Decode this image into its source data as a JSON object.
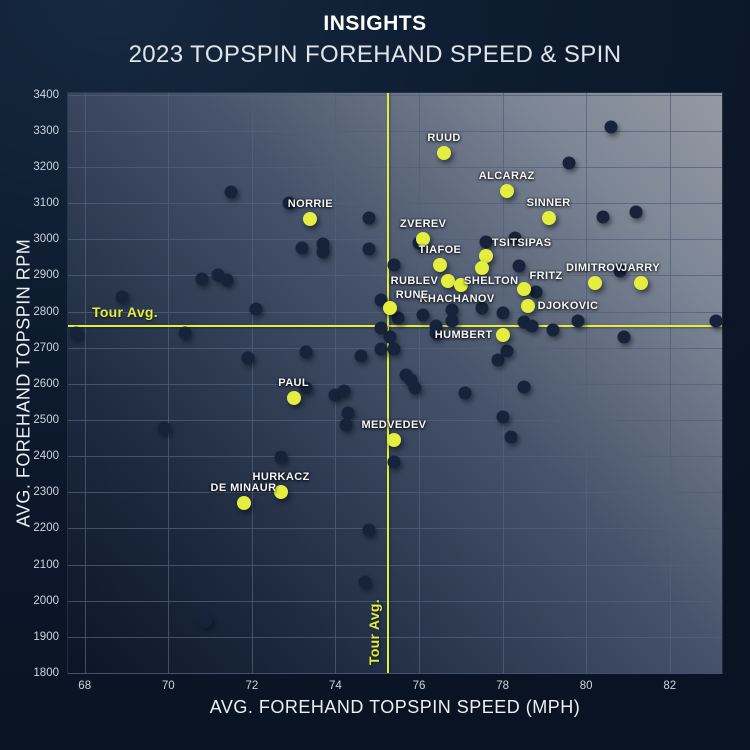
{
  "header": {
    "title": "INSIGHTS",
    "subtitle": "2023 TOPSPIN FOREHAND SPEED & SPIN"
  },
  "colors": {
    "accent_yellow": "#e3ee3f",
    "dark_point": "#16233a",
    "gridline": "#51607a",
    "label_text": "#f5f7f9",
    "tick_text": "#ccd4dd"
  },
  "chart_data": {
    "type": "scatter",
    "title": "INSIGHTS",
    "subtitle": "2023 TOPSPIN FOREHAND SPEED & SPIN",
    "xlabel": "AVG. FOREHAND TOPSPIN SPEED (MPH)",
    "ylabel": "AVG. FOREHAND TOPSPIN RPM",
    "xlim": [
      67.6,
      83.25
    ],
    "ylim": [
      1800,
      3405
    ],
    "xticks": [
      68,
      70,
      72,
      74,
      76,
      78,
      80,
      82
    ],
    "yticks": [
      1800,
      1900,
      2000,
      2100,
      2200,
      2300,
      2400,
      2500,
      2600,
      2700,
      2800,
      2900,
      3000,
      3100,
      3200,
      3300,
      3400
    ],
    "grid": true,
    "tour_avg": {
      "label": "Tour Avg.",
      "speed": 75.26,
      "rpm": 2760
    },
    "players": [
      {
        "name": "RUUD",
        "speed": 76.6,
        "rpm": 3240,
        "label_pos": "top"
      },
      {
        "name": "ALCARAZ",
        "speed": 78.1,
        "rpm": 3135,
        "label_pos": "top"
      },
      {
        "name": "SINNER",
        "speed": 79.1,
        "rpm": 3060,
        "label_pos": "top"
      },
      {
        "name": "NORRIE",
        "speed": 73.4,
        "rpm": 3055,
        "label_pos": "top"
      },
      {
        "name": "ZVEREV",
        "speed": 76.1,
        "rpm": 3000,
        "label_pos": "top"
      },
      {
        "name": "TSITSIPAS",
        "speed": 77.6,
        "rpm": 2955,
        "label_pos": "top-right"
      },
      {
        "name": "TIAFOE",
        "speed": 76.5,
        "rpm": 2930,
        "label_pos": "top"
      },
      {
        "name": "SHELTON",
        "speed": 77.5,
        "rpm": 2920,
        "label_pos": "bottom-right"
      },
      {
        "name": "RUBLEV",
        "speed": 76.7,
        "rpm": 2885,
        "label_pos": "left"
      },
      {
        "name": "KHACHANOV",
        "speed": 77.0,
        "rpm": 2875,
        "label_pos": "bottom"
      },
      {
        "name": "FRITZ",
        "speed": 78.5,
        "rpm": 2862,
        "label_pos": "top-right"
      },
      {
        "name": "DIMITROV",
        "speed": 80.2,
        "rpm": 2880,
        "label_pos": "top"
      },
      {
        "name": "JARRY",
        "speed": 81.3,
        "rpm": 2880,
        "label_pos": "top"
      },
      {
        "name": "RUNE",
        "speed": 75.3,
        "rpm": 2810,
        "label_pos": "top-right"
      },
      {
        "name": "DJOKOVIC",
        "speed": 78.6,
        "rpm": 2815,
        "label_pos": "right"
      },
      {
        "name": "HUMBERT",
        "speed": 78.0,
        "rpm": 2735,
        "label_pos": "left"
      },
      {
        "name": "PAUL",
        "speed": 73.0,
        "rpm": 2560,
        "label_pos": "top"
      },
      {
        "name": "MEDVEDEV",
        "speed": 75.4,
        "rpm": 2445,
        "label_pos": "top"
      },
      {
        "name": "HURKACZ",
        "speed": 72.7,
        "rpm": 2300,
        "label_pos": "top"
      },
      {
        "name": "DE MINAUR",
        "speed": 71.8,
        "rpm": 2270,
        "label_pos": "top"
      }
    ],
    "unlabeled_points": [
      [
        71.5,
        3130
      ],
      [
        72.9,
        3100
      ],
      [
        80.6,
        3310
      ],
      [
        79.6,
        3210
      ],
      [
        80.4,
        3062
      ],
      [
        81.2,
        3075
      ],
      [
        74.8,
        3060
      ],
      [
        73.2,
        2975
      ],
      [
        73.7,
        2987
      ],
      [
        73.7,
        2965
      ],
      [
        74.8,
        2973
      ],
      [
        76.0,
        2990
      ],
      [
        77.6,
        2992
      ],
      [
        78.3,
        3005
      ],
      [
        75.4,
        2930
      ],
      [
        78.4,
        2926
      ],
      [
        70.8,
        2890
      ],
      [
        71.2,
        2900
      ],
      [
        71.4,
        2888
      ],
      [
        68.9,
        2840
      ],
      [
        80.8,
        2912
      ],
      [
        78.8,
        2853
      ],
      [
        78.0,
        2796
      ],
      [
        77.5,
        2810
      ],
      [
        76.8,
        2804
      ],
      [
        76.1,
        2792
      ],
      [
        75.1,
        2833
      ],
      [
        72.1,
        2808
      ],
      [
        67.8,
        2740
      ],
      [
        70.4,
        2742
      ],
      [
        75.1,
        2754
      ],
      [
        75.3,
        2731
      ],
      [
        75.5,
        2783
      ],
      [
        76.4,
        2760
      ],
      [
        76.8,
        2773
      ],
      [
        78.5,
        2772
      ],
      [
        78.7,
        2761
      ],
      [
        79.2,
        2748
      ],
      [
        79.8,
        2775
      ],
      [
        83.1,
        2775
      ],
      [
        80.9,
        2729
      ],
      [
        76.4,
        2741
      ],
      [
        77.9,
        2666
      ],
      [
        78.1,
        2692
      ],
      [
        75.1,
        2697
      ],
      [
        75.4,
        2696
      ],
      [
        74.6,
        2678
      ],
      [
        71.9,
        2673
      ],
      [
        73.3,
        2688
      ],
      [
        75.7,
        2625
      ],
      [
        75.8,
        2610
      ],
      [
        75.9,
        2589
      ],
      [
        77.1,
        2574
      ],
      [
        78.5,
        2591
      ],
      [
        78.0,
        2508
      ],
      [
        78.2,
        2452
      ],
      [
        73.3,
        2588
      ],
      [
        74.0,
        2570
      ],
      [
        74.2,
        2580
      ],
      [
        74.3,
        2520
      ],
      [
        74.25,
        2487
      ],
      [
        69.9,
        2477
      ],
      [
        72.7,
        2397
      ],
      [
        75.4,
        2383
      ],
      [
        74.8,
        2196
      ],
      [
        74.7,
        2051
      ],
      [
        70.9,
        1944
      ]
    ]
  }
}
